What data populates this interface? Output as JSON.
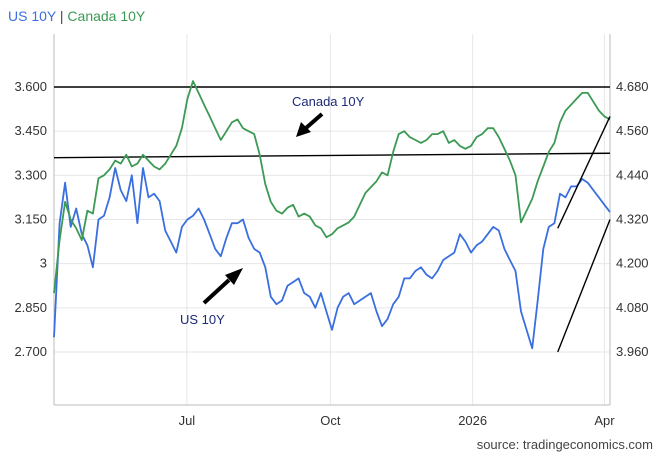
{
  "legend": {
    "us_label": "US 10Y",
    "separator": "|",
    "ca_label": "Canada 10Y"
  },
  "source": "source: tradingeconomics.com",
  "colors": {
    "us": "#3a6fe0",
    "canada": "#3d9a55",
    "trendline": "#000000",
    "grid": "#e6e6e6"
  },
  "chart_data": {
    "type": "line",
    "title": "US 10Y | Canada 10Y",
    "x_range": [
      0,
      100
    ],
    "x_ticks": [
      {
        "x": 23.9,
        "label": "Jul"
      },
      {
        "x": 49.7,
        "label": "Oct"
      },
      {
        "x": 75.3,
        "label": "2026"
      },
      {
        "x": 99.0,
        "label": "Apr"
      }
    ],
    "left_axis": {
      "series": "Canada 10Y",
      "ylim": [
        2.52,
        3.78
      ],
      "ticks": [
        "2.700",
        "2.850",
        "3",
        "3.150",
        "3.300",
        "3.450",
        "3.600"
      ],
      "tick_values": [
        2.7,
        2.85,
        3.0,
        3.15,
        3.3,
        3.45,
        3.6
      ]
    },
    "right_axis": {
      "series": "US 10Y",
      "ylim": [
        3.816,
        4.824
      ],
      "ticks": [
        "3.960",
        "4.080",
        "4.200",
        "4.320",
        "4.440",
        "4.560",
        "4.680"
      ],
      "tick_values": [
        3.96,
        4.08,
        4.2,
        4.32,
        4.44,
        4.56,
        4.68
      ]
    },
    "series": [
      {
        "name": "US 10Y",
        "axis": "right",
        "x": [
          0,
          1,
          2,
          3,
          4,
          5,
          6,
          7,
          8,
          9,
          10,
          11,
          12,
          13,
          14,
          15,
          16,
          17,
          18,
          19,
          20,
          21,
          22,
          23,
          24,
          25,
          26,
          27,
          28,
          29,
          30,
          31,
          32,
          33,
          34,
          35,
          36,
          37,
          38,
          39,
          40,
          41,
          42,
          43,
          44,
          45,
          46,
          47,
          48,
          49,
          50,
          51,
          52,
          53,
          54,
          55,
          56,
          57,
          58,
          59,
          60,
          61,
          62,
          63,
          64,
          65,
          66,
          67,
          68,
          69,
          70,
          71,
          72,
          73,
          74,
          75,
          76,
          77,
          78,
          79,
          80,
          81,
          82,
          83,
          84,
          85,
          86,
          87,
          88,
          89,
          90,
          91,
          92,
          93,
          94,
          95,
          96,
          97,
          98,
          99,
          100
        ],
        "values": [
          4.0,
          4.31,
          4.42,
          4.3,
          4.35,
          4.28,
          4.25,
          4.19,
          4.32,
          4.33,
          4.38,
          4.46,
          4.4,
          4.37,
          4.44,
          4.31,
          4.46,
          4.38,
          4.39,
          4.37,
          4.29,
          4.26,
          4.23,
          4.3,
          4.32,
          4.33,
          4.35,
          4.32,
          4.28,
          4.24,
          4.22,
          4.27,
          4.31,
          4.31,
          4.32,
          4.27,
          4.24,
          4.23,
          4.19,
          4.11,
          4.09,
          4.1,
          4.14,
          4.15,
          4.16,
          4.12,
          4.11,
          4.08,
          4.12,
          4.07,
          4.02,
          4.08,
          4.11,
          4.12,
          4.09,
          4.1,
          4.11,
          4.12,
          4.07,
          4.03,
          4.05,
          4.09,
          4.11,
          4.16,
          4.16,
          4.18,
          4.19,
          4.17,
          4.16,
          4.18,
          4.21,
          4.22,
          4.23,
          4.28,
          4.26,
          4.23,
          4.25,
          4.26,
          4.28,
          4.3,
          4.29,
          4.24,
          4.21,
          4.18,
          4.07,
          4.02,
          3.97,
          4.1,
          4.24,
          4.3,
          4.31,
          4.39,
          4.38,
          4.41,
          4.41,
          4.43,
          4.42,
          4.4,
          4.38,
          4.36,
          4.34
        ]
      },
      {
        "name": "Canada 10Y",
        "axis": "left",
        "x": [
          0,
          1,
          2,
          3,
          4,
          5,
          6,
          7,
          8,
          9,
          10,
          11,
          12,
          13,
          14,
          15,
          16,
          17,
          18,
          19,
          20,
          21,
          22,
          23,
          24,
          25,
          26,
          27,
          28,
          29,
          30,
          31,
          32,
          33,
          34,
          35,
          36,
          37,
          38,
          39,
          40,
          41,
          42,
          43,
          44,
          45,
          46,
          47,
          48,
          49,
          50,
          51,
          52,
          53,
          54,
          55,
          56,
          57,
          58,
          59,
          60,
          61,
          62,
          63,
          64,
          65,
          66,
          67,
          68,
          69,
          70,
          71,
          72,
          73,
          74,
          75,
          76,
          77,
          78,
          79,
          80,
          81,
          82,
          83,
          84,
          85,
          86,
          87,
          88,
          89,
          90,
          91,
          92,
          93,
          94,
          95,
          96,
          97,
          98,
          99,
          100
        ],
        "values": [
          2.9,
          3.08,
          3.21,
          3.15,
          3.12,
          3.08,
          3.18,
          3.17,
          3.29,
          3.3,
          3.32,
          3.35,
          3.34,
          3.37,
          3.33,
          3.34,
          3.37,
          3.35,
          3.33,
          3.32,
          3.34,
          3.37,
          3.4,
          3.46,
          3.56,
          3.62,
          3.58,
          3.54,
          3.5,
          3.46,
          3.42,
          3.45,
          3.48,
          3.49,
          3.46,
          3.45,
          3.44,
          3.37,
          3.27,
          3.21,
          3.18,
          3.17,
          3.19,
          3.2,
          3.16,
          3.17,
          3.16,
          3.13,
          3.12,
          3.09,
          3.1,
          3.12,
          3.13,
          3.14,
          3.16,
          3.2,
          3.24,
          3.26,
          3.28,
          3.31,
          3.3,
          3.38,
          3.44,
          3.45,
          3.43,
          3.42,
          3.41,
          3.42,
          3.44,
          3.44,
          3.45,
          3.41,
          3.42,
          3.4,
          3.39,
          3.4,
          3.43,
          3.44,
          3.46,
          3.46,
          3.43,
          3.39,
          3.35,
          3.3,
          3.14,
          3.18,
          3.22,
          3.28,
          3.33,
          3.38,
          3.41,
          3.48,
          3.52,
          3.54,
          3.56,
          3.58,
          3.58,
          3.55,
          3.52,
          3.5,
          3.49
        ]
      }
    ],
    "annotations": [
      {
        "text": "Canada 10Y",
        "arrow": "points down-left to Canada 10Y line"
      },
      {
        "text": "US 10Y",
        "arrow": "points up-right to US 10Y line"
      }
    ],
    "horizontal_lines": [
      {
        "axis": "left",
        "y_start": 3.6,
        "y_end": 3.6,
        "x_start": 0,
        "x_end": 100
      },
      {
        "axis": "left",
        "y_start": 3.36,
        "y_end": 3.375,
        "x_start": 0,
        "x_end": 100
      }
    ],
    "trend_lines": [
      {
        "axis": "left",
        "x": [
          90.6,
          100
        ],
        "y": [
          3.12,
          3.5
        ]
      },
      {
        "axis": "right",
        "x": [
          90.6,
          100
        ],
        "y": [
          3.96,
          4.32
        ]
      }
    ]
  }
}
